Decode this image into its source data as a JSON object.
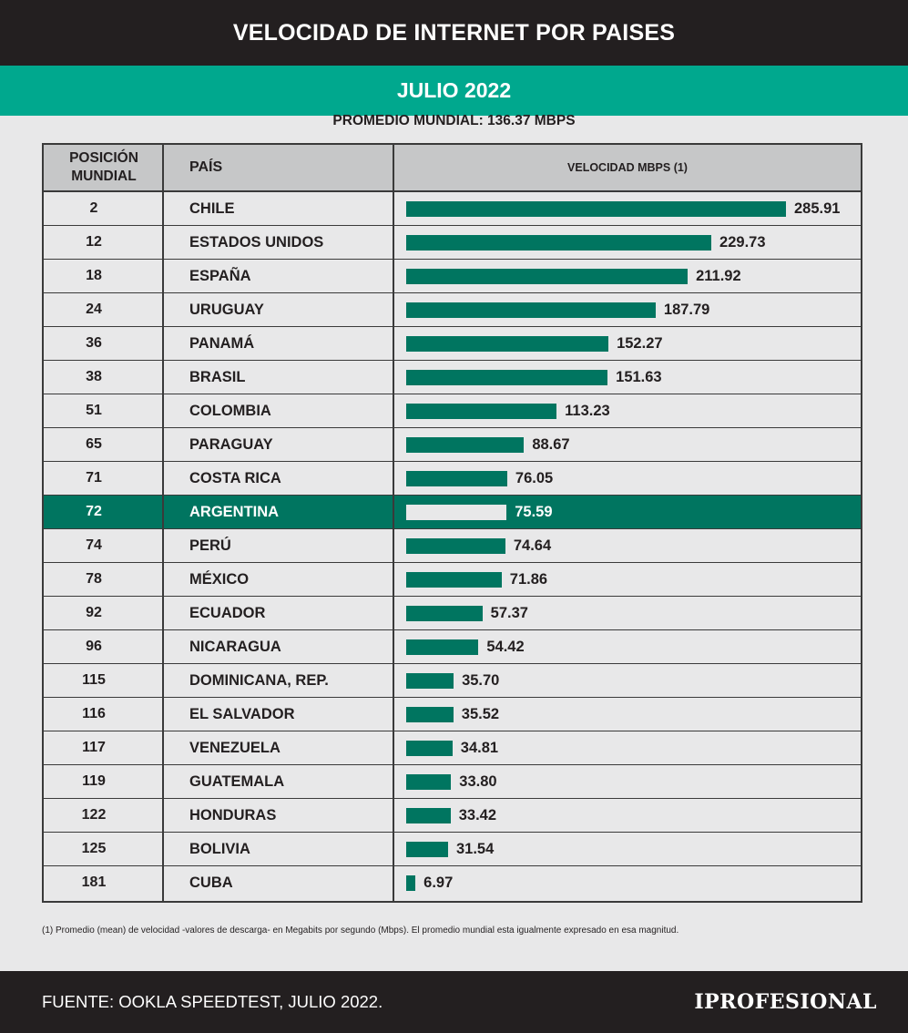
{
  "header": {
    "title": "VELOCIDAD DE INTERNET POR PAISES",
    "subtitle": "JULIO 2022",
    "average_label": "PROMEDIO MUNDIAL: 136.37 MBPS"
  },
  "colors": {
    "bar": "#007560",
    "subtitle_bg": "#00a88e",
    "dark_bg": "#231f20",
    "highlight_bar": "#e8e8e9"
  },
  "chart_data": {
    "type": "bar",
    "orientation": "horizontal",
    "columns": [
      "POSICIÓN\nMUNDIAL",
      "PAÍS",
      "VELOCIDAD MBPS (1)"
    ],
    "xlim": [
      0,
      285.91
    ],
    "highlight": "ARGENTINA",
    "rows": [
      {
        "pos": "2",
        "country": "CHILE",
        "value": 285.91,
        "label": "285.91"
      },
      {
        "pos": "12",
        "country": "ESTADOS UNIDOS",
        "value": 229.73,
        "label": "229.73"
      },
      {
        "pos": "18",
        "country": "ESPAÑA",
        "value": 211.92,
        "label": "211.92"
      },
      {
        "pos": "24",
        "country": "URUGUAY",
        "value": 187.79,
        "label": "187.79"
      },
      {
        "pos": "36",
        "country": "PANAMÁ",
        "value": 152.27,
        "label": "152.27"
      },
      {
        "pos": "38",
        "country": "BRASIL",
        "value": 151.63,
        "label": "151.63"
      },
      {
        "pos": "51",
        "country": "COLOMBIA",
        "value": 113.23,
        "label": "113.23"
      },
      {
        "pos": "65",
        "country": "PARAGUAY",
        "value": 88.67,
        "label": "88.67"
      },
      {
        "pos": "71",
        "country": "COSTA RICA",
        "value": 76.05,
        "label": "76.05"
      },
      {
        "pos": "72",
        "country": "ARGENTINA",
        "value": 75.59,
        "label": "75.59"
      },
      {
        "pos": "74",
        "country": "PERÚ",
        "value": 74.64,
        "label": "74.64"
      },
      {
        "pos": "78",
        "country": "MÉXICO",
        "value": 71.86,
        "label": "71.86"
      },
      {
        "pos": "92",
        "country": "ECUADOR",
        "value": 57.37,
        "label": "57.37"
      },
      {
        "pos": "96",
        "country": "NICARAGUA",
        "value": 54.42,
        "label": "54.42"
      },
      {
        "pos": "115",
        "country": "DOMINICANA, REP.",
        "value": 35.7,
        "label": "35.70"
      },
      {
        "pos": "116",
        "country": "EL SALVADOR",
        "value": 35.52,
        "label": "35.52"
      },
      {
        "pos": "117",
        "country": "VENEZUELA",
        "value": 34.81,
        "label": "34.81"
      },
      {
        "pos": "119",
        "country": "GUATEMALA",
        "value": 33.8,
        "label": "33.80"
      },
      {
        "pos": "122",
        "country": "HONDURAS",
        "value": 33.42,
        "label": "33.42"
      },
      {
        "pos": "125",
        "country": "BOLIVIA",
        "value": 31.54,
        "label": "31.54"
      },
      {
        "pos": "181",
        "country": "CUBA",
        "value": 6.97,
        "label": "6.97"
      }
    ]
  },
  "footnote": "(1) Promedio (mean) de velocidad -valores de descarga- en Megabits por segundo (Mbps). El promedio mundial esta igualmente expresado en esa magnitud.",
  "footer": {
    "source": "FUENTE: OOKLA SPEEDTEST, JULIO 2022.",
    "logo": "IPROFESIONAL"
  }
}
